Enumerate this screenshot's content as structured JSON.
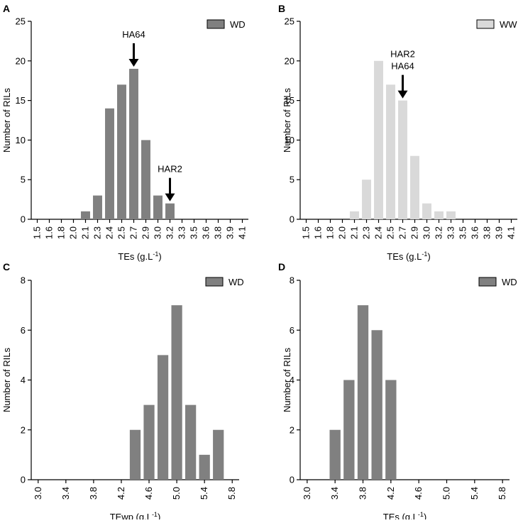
{
  "chart_data": [
    {
      "panel": "A",
      "type": "bar",
      "categories": [
        "1.5",
        "1.6",
        "1.8",
        "2.0",
        "2.1",
        "2.3",
        "2.4",
        "2.5",
        "2.7",
        "2.9",
        "3.0",
        "3.2",
        "3.3",
        "3.5",
        "3.6",
        "3.8",
        "3.9",
        "4.1"
      ],
      "values": [
        0,
        0,
        0,
        0,
        1,
        3,
        14,
        17,
        19,
        10,
        3,
        2,
        0,
        0,
        0,
        0,
        0,
        0
      ],
      "xlabel_main": "TEs (g.L",
      "xlabel_sup": "-1",
      "xlabel_end": ")",
      "ylabel": "Number of RILs",
      "ylim": [
        0,
        25
      ],
      "yticks": [
        0,
        5,
        10,
        15,
        20,
        25
      ],
      "legend": "WD",
      "color": "#808080",
      "annotations": [
        {
          "lines": [
            "HA64"
          ],
          "category": "2.7"
        },
        {
          "lines": [
            "HAR2"
          ],
          "category": "3.2"
        }
      ]
    },
    {
      "panel": "B",
      "type": "bar",
      "categories": [
        "1.5",
        "1.6",
        "1.8",
        "2.0",
        "2.1",
        "2.3",
        "2.4",
        "2.5",
        "2.7",
        "2.9",
        "3.0",
        "3.2",
        "3.3",
        "3.5",
        "3.6",
        "3.8",
        "3.9",
        "4.1"
      ],
      "values": [
        0,
        0,
        0,
        0,
        1,
        5,
        20,
        17,
        15,
        8,
        2,
        1,
        1,
        0,
        0,
        0,
        0,
        0
      ],
      "xlabel_main": "TEs (g.L",
      "xlabel_sup": "-1",
      "xlabel_end": ")",
      "ylabel": "Number of RILs",
      "ylim": [
        0,
        25
      ],
      "yticks": [
        0,
        5,
        10,
        15,
        20,
        25
      ],
      "legend": "WW",
      "color": "#d9d9d9",
      "annotations": [
        {
          "lines": [
            "HAR2",
            "HA64"
          ],
          "category": "2.7"
        }
      ]
    },
    {
      "panel": "C",
      "type": "bar",
      "categories": [
        "3.0",
        "3.4",
        "3.8",
        "4.2",
        "4.6",
        "5.0",
        "5.4",
        "5.8"
      ],
      "x": [
        4.4,
        4.6,
        4.8,
        5.0,
        5.2,
        5.4,
        5.6
      ],
      "values": [
        2,
        3,
        5,
        7,
        3,
        1,
        2
      ],
      "xlim": [
        2.9,
        5.9
      ],
      "xlabel_main": "TEwp (g.L",
      "xlabel_sup": "-1",
      "xlabel_end": ")",
      "ylabel": "Number of RILs",
      "ylim": [
        0,
        8
      ],
      "yticks": [
        0,
        2,
        4,
        6,
        8
      ],
      "legend": "WD",
      "color": "#808080",
      "annotations": []
    },
    {
      "panel": "D",
      "type": "bar",
      "categories": [
        "3.0",
        "3.4",
        "3.8",
        "4.2",
        "4.6",
        "5.0",
        "5.4",
        "5.8"
      ],
      "x": [
        3.4,
        3.6,
        3.8,
        4.0,
        4.2
      ],
      "values": [
        2,
        4,
        7,
        6,
        4
      ],
      "xlim": [
        2.9,
        5.9
      ],
      "xlabel_main": "TEs (g.L",
      "xlabel_sup": "-1",
      "xlabel_end": ")",
      "ylabel": "Number of RILs",
      "ylim": [
        0,
        8
      ],
      "yticks": [
        0,
        2,
        4,
        6,
        8
      ],
      "legend": "WD",
      "color": "#808080",
      "annotations": []
    }
  ]
}
